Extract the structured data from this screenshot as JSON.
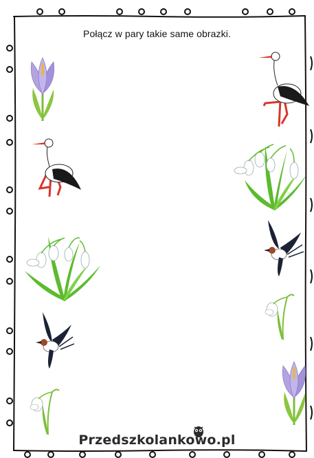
{
  "instruction": "Połącz w pary takie same obrazki.",
  "brand": "Przedszkolankowo.pl",
  "left_column": [
    "crocus",
    "stork",
    "snowdrops-large",
    "swallow",
    "snowdrop-small"
  ],
  "right_column": [
    "stork",
    "snowdrops-large",
    "swallow",
    "snowdrop-small",
    "crocus"
  ],
  "colors": {
    "frame": "#111111",
    "crocus_petal": "#a99ad8",
    "stork_leg": "#d8352a",
    "leaf_green": "#58b52c",
    "swallow_dark": "#1c2236",
    "swallow_throat": "#9b4b2a"
  }
}
